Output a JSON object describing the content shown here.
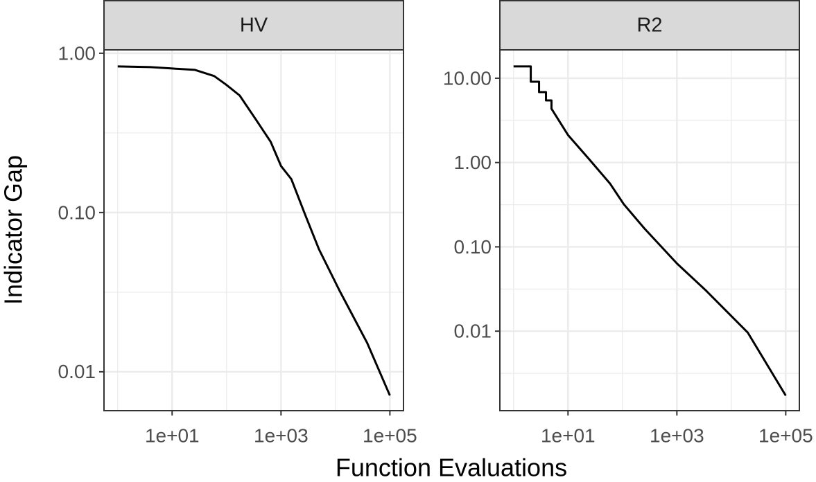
{
  "x_label": "Function Evaluations",
  "y_label": "Indicator Gap",
  "chart_data": [
    {
      "type": "line",
      "title": "HV",
      "log_x": true,
      "log_y": true,
      "grid": true,
      "x": [
        1,
        3.94,
        10,
        26.2,
        59.2,
        97,
        174,
        361,
        646,
        1000,
        1549,
        2773,
        4966,
        11900,
        38200,
        100000
      ],
      "series": [
        {
          "name": "HV",
          "color": "#000000",
          "values": [
            0.827,
            0.819,
            0.802,
            0.786,
            0.719,
            0.637,
            0.543,
            0.375,
            0.278,
            0.196,
            0.162,
            0.097,
            0.0589,
            0.0323,
            0.0152,
            0.0071
          ]
        }
      ],
      "xlim": [
        0.56,
        177828
      ],
      "ylim": [
        0.0057,
        1.05
      ],
      "xticks": [
        {
          "value": 10,
          "label": "1e+01"
        },
        {
          "value": 1000,
          "label": "1e+03"
        },
        {
          "value": 100000,
          "label": "1e+05"
        }
      ],
      "yticks": [
        {
          "value": 0.01,
          "label": "0.01"
        },
        {
          "value": 0.1,
          "label": "0.10"
        },
        {
          "value": 1,
          "label": "1.00"
        }
      ],
      "x_minor_ticks": [
        1,
        100,
        10000
      ],
      "y_minor_ticks": [
        0.0316,
        0.316
      ]
    },
    {
      "type": "line",
      "title": "R2",
      "log_x": true,
      "log_y": true,
      "grid": true,
      "x": [
        1,
        2.07,
        2.07,
        2.94,
        2.94,
        3.94,
        3.94,
        4.97,
        4.97,
        10,
        24.6,
        59,
        106,
        254,
        1000,
        3500,
        20100,
        100000
      ],
      "series": [
        {
          "name": "R2",
          "color": "#000000",
          "values": [
            13.8,
            13.8,
            9.1,
            9.1,
            6.85,
            6.85,
            5.46,
            5.46,
            4.35,
            2.12,
            1.09,
            0.564,
            0.32,
            0.165,
            0.0636,
            0.0299,
            0.0096,
            0.00172
          ]
        }
      ],
      "xlim": [
        0.56,
        177828
      ],
      "ylim": [
        0.00114,
        21.7
      ],
      "xticks": [
        {
          "value": 10,
          "label": "1e+01"
        },
        {
          "value": 1000,
          "label": "1e+03"
        },
        {
          "value": 100000,
          "label": "1e+05"
        }
      ],
      "yticks": [
        {
          "value": 0.01,
          "label": "0.01"
        },
        {
          "value": 0.1,
          "label": "0.10"
        },
        {
          "value": 1,
          "label": "1.00"
        },
        {
          "value": 10,
          "label": "10.00"
        }
      ],
      "x_minor_ticks": [
        1,
        100,
        10000
      ],
      "y_minor_ticks": [
        0.00316,
        0.0316,
        0.316,
        3.16
      ]
    }
  ]
}
